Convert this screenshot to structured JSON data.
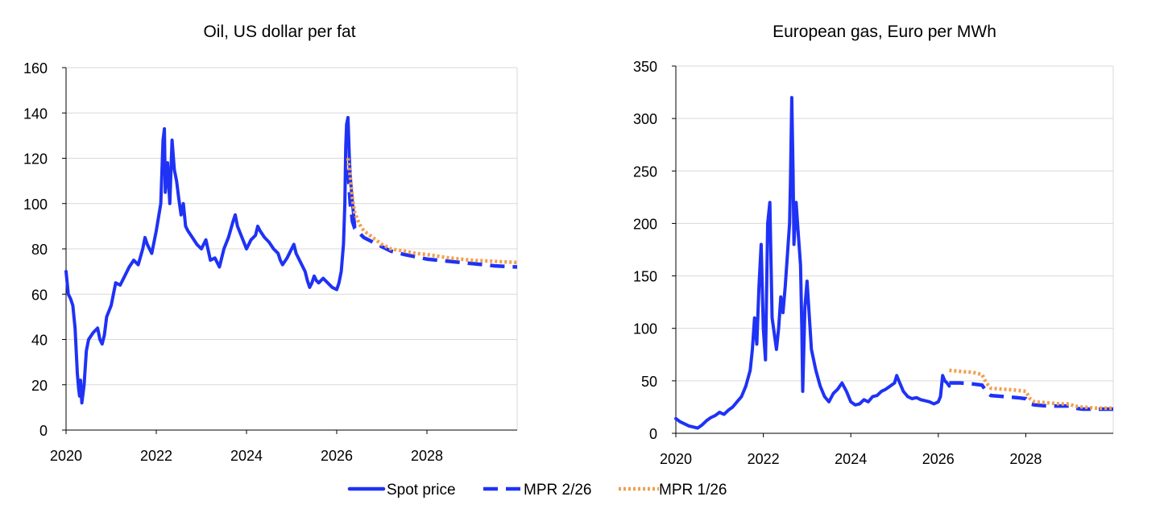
{
  "legend": {
    "spot": "Spot price",
    "mpr_feb": "MPR 2/26",
    "mpr_jan": "MPR 1/26"
  },
  "colors": {
    "spot": "#1f32f5",
    "mpr_feb": "#1f32f5",
    "mpr_jan": "#f0a050",
    "grid": "#d9d9d9",
    "axis": "#000000"
  },
  "chart_data": [
    {
      "type": "line",
      "title": "Oil, US dollar per fat",
      "xlim": [
        2020,
        2030
      ],
      "ylim": [
        0,
        160
      ],
      "xticks": [
        2020,
        2022,
        2024,
        2026,
        2028
      ],
      "xtick_labels": [
        "2020",
        "2022",
        "2024",
        "2026",
        "2028"
      ],
      "yticks": [
        0,
        20,
        40,
        60,
        80,
        100,
        120,
        140,
        160
      ],
      "ytick_labels": [
        "0",
        "20",
        "40",
        "60",
        "80",
        "100",
        "120",
        "140",
        "160"
      ],
      "grid": true,
      "series": [
        {
          "name": "Spot price",
          "style": "solid",
          "x": [
            2020.0,
            2020.05,
            2020.1,
            2020.15,
            2020.2,
            2020.25,
            2020.28,
            2020.3,
            2020.32,
            2020.35,
            2020.4,
            2020.45,
            2020.5,
            2020.6,
            2020.7,
            2020.75,
            2020.8,
            2020.85,
            2020.9,
            2021.0,
            2021.1,
            2021.2,
            2021.3,
            2021.4,
            2021.5,
            2021.6,
            2021.7,
            2021.75,
            2021.8,
            2021.9,
            2022.0,
            2022.1,
            2022.15,
            2022.18,
            2022.2,
            2022.25,
            2022.3,
            2022.35,
            2022.4,
            2022.45,
            2022.5,
            2022.55,
            2022.6,
            2022.65,
            2022.7,
            2022.8,
            2022.9,
            2023.0,
            2023.1,
            2023.2,
            2023.3,
            2023.4,
            2023.5,
            2023.6,
            2023.7,
            2023.75,
            2023.8,
            2023.9,
            2024.0,
            2024.1,
            2024.2,
            2024.25,
            2024.3,
            2024.4,
            2024.5,
            2024.6,
            2024.7,
            2024.75,
            2024.8,
            2024.9,
            2025.0,
            2025.05,
            2025.1,
            2025.2,
            2025.3,
            2025.35,
            2025.4,
            2025.45,
            2025.5,
            2025.55,
            2025.6,
            2025.7,
            2025.8,
            2025.9,
            2026.0,
            2026.05,
            2026.1,
            2026.15,
            2026.18,
            2026.2,
            2026.22,
            2026.25,
            2026.28,
            2026.3,
            2026.35,
            2026.4
          ],
          "y": [
            70,
            60,
            58,
            55,
            45,
            25,
            18,
            15,
            22,
            12,
            20,
            35,
            40,
            43,
            45,
            40,
            38,
            42,
            50,
            55,
            65,
            64,
            68,
            72,
            75,
            73,
            80,
            85,
            82,
            78,
            88,
            100,
            128,
            133,
            105,
            118,
            100,
            128,
            115,
            110,
            102,
            95,
            100,
            90,
            88,
            85,
            82,
            80,
            84,
            75,
            76,
            72,
            80,
            85,
            92,
            95,
            90,
            85,
            80,
            84,
            86,
            90,
            88,
            85,
            83,
            80,
            78,
            75,
            73,
            76,
            80,
            82,
            78,
            74,
            70,
            66,
            63,
            65,
            68,
            66,
            65,
            67,
            65,
            63,
            62,
            65,
            70,
            82,
            100,
            125,
            135,
            138,
            120,
            112,
            100,
            90
          ]
        },
        {
          "name": "MPR 2/26",
          "style": "dashed",
          "x": [
            2026.25,
            2026.3,
            2026.35,
            2026.4,
            2026.5,
            2026.6,
            2026.8,
            2027.0,
            2027.2,
            2027.5,
            2027.75,
            2028.0,
            2028.5,
            2029.0,
            2029.5,
            2030.0
          ],
          "y": [
            115,
            100,
            92,
            89,
            87,
            85,
            83,
            81,
            79,
            77.5,
            76.5,
            75.5,
            74.5,
            73.5,
            72.5,
            72
          ]
        },
        {
          "name": "MPR 1/26",
          "style": "dotted",
          "x": [
            2026.25,
            2026.3,
            2026.35,
            2026.4,
            2026.5,
            2026.6,
            2026.8,
            2027.0,
            2027.2,
            2027.5,
            2027.75,
            2028.0,
            2028.5,
            2029.0,
            2029.5,
            2030.0
          ],
          "y": [
            120,
            112,
            102,
            96,
            91,
            88,
            85,
            82,
            80,
            79,
            78,
            77.5,
            76,
            75,
            74.5,
            74
          ]
        }
      ]
    },
    {
      "type": "line",
      "title": "European gas, Euro per MWh",
      "xlim": [
        2020,
        2030
      ],
      "ylim": [
        0,
        350
      ],
      "xticks": [
        2020,
        2022,
        2024,
        2026,
        2028
      ],
      "xtick_labels": [
        "2020",
        "2022",
        "2024",
        "2026",
        "2028"
      ],
      "yticks": [
        0,
        50,
        100,
        150,
        200,
        250,
        300,
        350
      ],
      "ytick_labels": [
        "0",
        "50",
        "100",
        "150",
        "200",
        "250",
        "300",
        "350"
      ],
      "grid": true,
      "series": [
        {
          "name": "Spot price",
          "style": "solid",
          "x": [
            2020.0,
            2020.1,
            2020.2,
            2020.3,
            2020.4,
            2020.5,
            2020.6,
            2020.7,
            2020.8,
            2020.9,
            2021.0,
            2021.1,
            2021.2,
            2021.3,
            2021.4,
            2021.5,
            2021.6,
            2021.7,
            2021.75,
            2021.8,
            2021.85,
            2021.9,
            2021.95,
            2022.0,
            2022.05,
            2022.1,
            2022.15,
            2022.2,
            2022.25,
            2022.3,
            2022.35,
            2022.4,
            2022.45,
            2022.5,
            2022.55,
            2022.6,
            2022.62,
            2022.65,
            2022.68,
            2022.7,
            2022.75,
            2022.8,
            2022.85,
            2022.88,
            2022.9,
            2022.95,
            2023.0,
            2023.1,
            2023.2,
            2023.3,
            2023.4,
            2023.5,
            2023.6,
            2023.7,
            2023.8,
            2023.9,
            2024.0,
            2024.1,
            2024.2,
            2024.3,
            2024.4,
            2024.5,
            2024.6,
            2024.7,
            2024.8,
            2024.9,
            2025.0,
            2025.05,
            2025.1,
            2025.2,
            2025.3,
            2025.4,
            2025.5,
            2025.6,
            2025.7,
            2025.8,
            2025.9,
            2026.0,
            2026.05,
            2026.1,
            2026.15,
            2026.2,
            2026.25
          ],
          "y": [
            14,
            11,
            9,
            7,
            6,
            5,
            8,
            12,
            15,
            17,
            20,
            18,
            22,
            25,
            30,
            35,
            45,
            60,
            80,
            110,
            85,
            140,
            180,
            100,
            70,
            200,
            220,
            110,
            95,
            80,
            100,
            130,
            115,
            140,
            170,
            200,
            240,
            320,
            250,
            180,
            220,
            190,
            160,
            100,
            40,
            120,
            145,
            80,
            60,
            45,
            35,
            30,
            38,
            42,
            48,
            40,
            30,
            27,
            28,
            32,
            30,
            35,
            36,
            40,
            42,
            45,
            48,
            55,
            50,
            40,
            35,
            33,
            34,
            32,
            31,
            30,
            28,
            30,
            35,
            55,
            50,
            48,
            45
          ]
        },
        {
          "name": "MPR 2/26",
          "style": "dashed",
          "x": [
            2026.25,
            2026.5,
            2026.8,
            2027.0,
            2027.1,
            2027.2,
            2027.5,
            2027.8,
            2028.0,
            2028.1,
            2028.2,
            2028.5,
            2028.8,
            2029.0,
            2029.1,
            2029.3,
            2029.6,
            2030.0
          ],
          "y": [
            48,
            48,
            47,
            46,
            40,
            36,
            35,
            34,
            33,
            28,
            27,
            26,
            26,
            26,
            24,
            23,
            23,
            23
          ]
        },
        {
          "name": "MPR 1/26",
          "style": "dotted",
          "x": [
            2026.25,
            2026.5,
            2026.8,
            2027.0,
            2027.1,
            2027.2,
            2027.5,
            2027.8,
            2028.0,
            2028.1,
            2028.2,
            2028.5,
            2028.8,
            2029.0,
            2029.1,
            2029.3,
            2029.6,
            2030.0
          ],
          "y": [
            60,
            59,
            58,
            56,
            48,
            43,
            42,
            41,
            40,
            33,
            30,
            29,
            28,
            28,
            26,
            25,
            24,
            24
          ]
        }
      ]
    }
  ]
}
